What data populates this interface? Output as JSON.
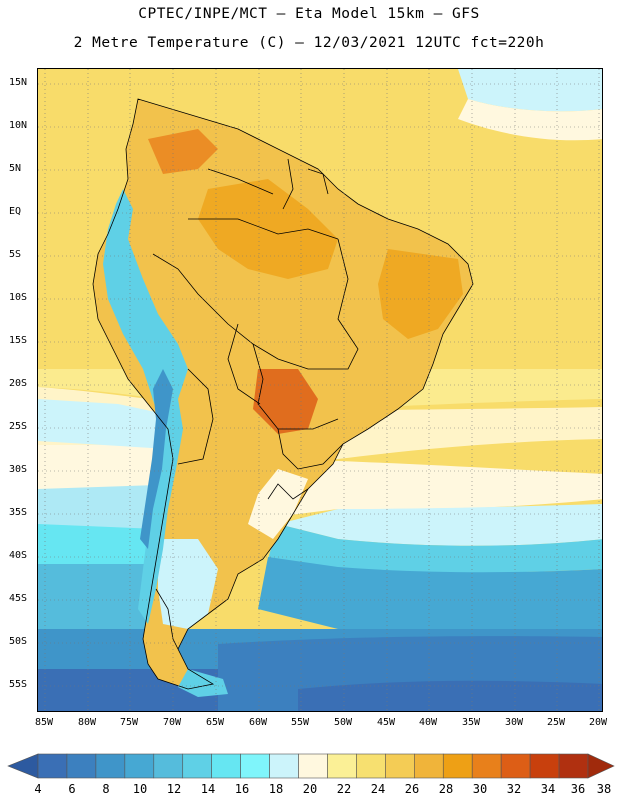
{
  "title_line1": "CPTEC/INPE/MCT –  Eta Model 15km – GFS",
  "title_line2": "2 Metre Temperature (C) – 12/03/2021 12UTC fct=220h",
  "lat_labels": [
    "15N",
    "10N",
    "5N",
    "EQ",
    "5S",
    "10S",
    "15S",
    "20S",
    "25S",
    "30S",
    "35S",
    "40S",
    "45S",
    "50S",
    "55S"
  ],
  "lon_labels": [
    "85W",
    "80W",
    "75W",
    "70W",
    "65W",
    "60W",
    "55W",
    "50W",
    "45W",
    "40W",
    "35W",
    "30W",
    "25W",
    "20W"
  ],
  "colorbar": {
    "labels": [
      "4",
      "6",
      "8",
      "10",
      "12",
      "14",
      "16",
      "18",
      "20",
      "22",
      "24",
      "26",
      "28",
      "30",
      "32",
      "34",
      "36",
      "38"
    ],
    "colors": [
      "#3a6fb5",
      "#3c80bf",
      "#3f95c9",
      "#46a8d3",
      "#55bcdc",
      "#5fd0e6",
      "#66e6f2",
      "#7ff5fb",
      "#ccf4fb",
      "#fff8df",
      "#fbf096",
      "#f7e070",
      "#f4cc55",
      "#f0b43a",
      "#eea015",
      "#e8801b",
      "#dd5e16",
      "#c8400d",
      "#b03010"
    ],
    "under_color": "#2d5aa0",
    "over_color": "#a02a0c"
  }
}
